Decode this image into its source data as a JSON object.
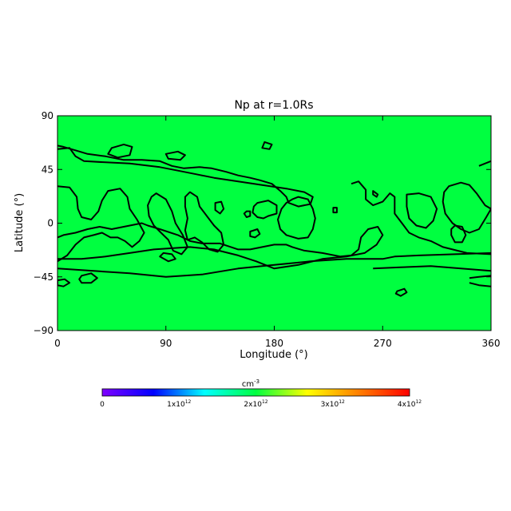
{
  "chart_data": {
    "type": "heatmap",
    "title": "Np at r=1.0Rs",
    "xlabel": "Longitude (°)",
    "ylabel": "Latitude (°)",
    "xlim": [
      0,
      360
    ],
    "ylim": [
      -90,
      90
    ],
    "x_ticks": [
      "0",
      "90",
      "180",
      "270",
      "360"
    ],
    "x_tick_values": [
      0,
      90,
      180,
      270,
      360
    ],
    "y_ticks": [
      "90",
      "45",
      "0",
      "−45",
      "−90"
    ],
    "y_tick_values": [
      90,
      45,
      0,
      -45,
      -90
    ],
    "field_color": "#00ff40",
    "contour_color": "#000000",
    "contours": [
      {
        "points": [
          [
            0,
            62
          ],
          [
            10,
            63
          ],
          [
            15,
            56
          ],
          [
            22,
            52
          ],
          [
            40,
            51
          ],
          [
            60,
            50
          ],
          [
            85,
            47
          ],
          [
            100,
            44
          ],
          [
            115,
            41
          ],
          [
            130,
            38
          ],
          [
            150,
            35
          ],
          [
            170,
            32
          ],
          [
            190,
            29
          ],
          [
            205,
            26
          ],
          [
            212,
            22
          ],
          [
            210,
            16
          ],
          [
            200,
            14
          ],
          [
            192,
            17
          ],
          [
            190,
            22
          ],
          [
            185,
            27
          ],
          [
            178,
            33
          ],
          [
            168,
            36
          ],
          [
            160,
            38
          ],
          [
            150,
            40
          ],
          [
            140,
            43
          ],
          [
            128,
            46
          ],
          [
            118,
            47
          ],
          [
            105,
            46
          ],
          [
            95,
            48
          ],
          [
            85,
            52
          ],
          [
            70,
            53
          ],
          [
            55,
            53
          ],
          [
            40,
            56
          ],
          [
            25,
            58
          ],
          [
            15,
            61
          ],
          [
            5,
            64
          ],
          [
            0,
            65
          ]
        ],
        "closed": false
      },
      {
        "points": [
          [
            0,
            31
          ],
          [
            10,
            30
          ],
          [
            16,
            22
          ],
          [
            17,
            12
          ],
          [
            20,
            5
          ],
          [
            28,
            3
          ],
          [
            34,
            10
          ],
          [
            37,
            19
          ],
          [
            42,
            27
          ],
          [
            52,
            29
          ],
          [
            58,
            22
          ],
          [
            60,
            12
          ],
          [
            66,
            3
          ],
          [
            72,
            -8
          ],
          [
            68,
            -15
          ],
          [
            62,
            -20
          ],
          [
            56,
            -15
          ],
          [
            50,
            -12
          ],
          [
            44,
            -12
          ],
          [
            37,
            -8
          ],
          [
            30,
            -10
          ],
          [
            22,
            -12
          ],
          [
            15,
            -18
          ],
          [
            8,
            -27
          ],
          [
            0,
            -32
          ]
        ],
        "closed": false
      },
      {
        "points": [
          [
            82,
            25
          ],
          [
            90,
            20
          ],
          [
            95,
            10
          ],
          [
            98,
            0
          ],
          [
            104,
            -10
          ],
          [
            108,
            -20
          ],
          [
            103,
            -26
          ],
          [
            96,
            -23
          ],
          [
            92,
            -14
          ],
          [
            86,
            -8
          ],
          [
            80,
            -2
          ],
          [
            76,
            6
          ],
          [
            75,
            15
          ],
          [
            78,
            22
          ]
        ],
        "closed": true
      },
      {
        "points": [
          [
            110,
            26
          ],
          [
            116,
            22
          ],
          [
            118,
            14
          ],
          [
            124,
            6
          ],
          [
            130,
            -2
          ],
          [
            136,
            -8
          ],
          [
            138,
            -18
          ],
          [
            133,
            -24
          ],
          [
            126,
            -22
          ],
          [
            120,
            -16
          ],
          [
            114,
            -12
          ],
          [
            108,
            -14
          ],
          [
            106,
            -6
          ],
          [
            108,
            4
          ],
          [
            106,
            14
          ],
          [
            106,
            22
          ]
        ],
        "closed": true
      },
      {
        "points": [
          [
            131,
            17
          ],
          [
            136,
            18
          ],
          [
            138,
            12
          ],
          [
            135,
            8
          ],
          [
            131,
            11
          ]
        ],
        "closed": true
      },
      {
        "points": [
          [
            157,
            10
          ],
          [
            160,
            10
          ],
          [
            160,
            6
          ],
          [
            157,
            5
          ],
          [
            155,
            8
          ]
        ],
        "closed": true
      },
      {
        "points": [
          [
            166,
            17
          ],
          [
            175,
            19
          ],
          [
            182,
            15
          ],
          [
            182,
            8
          ],
          [
            175,
            6
          ],
          [
            171,
            4
          ],
          [
            166,
            5
          ],
          [
            162,
            9
          ],
          [
            163,
            14
          ]
        ],
        "closed": true
      },
      {
        "points": [
          [
            195,
            20
          ],
          [
            200,
            22
          ],
          [
            208,
            20
          ],
          [
            212,
            12
          ],
          [
            214,
            4
          ],
          [
            212,
            -5
          ],
          [
            208,
            -12
          ],
          [
            200,
            -13
          ],
          [
            190,
            -10
          ],
          [
            185,
            -5
          ],
          [
            183,
            3
          ],
          [
            186,
            12
          ],
          [
            190,
            17
          ]
        ],
        "closed": true
      },
      {
        "points": [
          [
            0,
            -30
          ],
          [
            20,
            -30
          ],
          [
            40,
            -28
          ],
          [
            60,
            -25
          ],
          [
            80,
            -22
          ],
          [
            110,
            -20
          ],
          [
            130,
            -22
          ],
          [
            150,
            -27
          ],
          [
            165,
            -32
          ],
          [
            180,
            -38
          ],
          [
            200,
            -35
          ],
          [
            220,
            -30
          ],
          [
            240,
            -28
          ],
          [
            255,
            -25
          ],
          [
            265,
            -18
          ],
          [
            270,
            -10
          ],
          [
            266,
            -3
          ],
          [
            258,
            -5
          ],
          [
            252,
            -12
          ],
          [
            250,
            -22
          ],
          [
            244,
            -27
          ],
          [
            235,
            -28
          ],
          [
            220,
            -25
          ],
          [
            205,
            -23
          ],
          [
            195,
            -20
          ],
          [
            190,
            -18
          ],
          [
            180,
            -18
          ],
          [
            170,
            -20
          ],
          [
            160,
            -22
          ],
          [
            150,
            -22
          ],
          [
            135,
            -17
          ],
          [
            120,
            -17
          ],
          [
            110,
            -15
          ],
          [
            100,
            -10
          ],
          [
            85,
            -5
          ],
          [
            75,
            -2
          ],
          [
            70,
            0
          ],
          [
            60,
            -2
          ],
          [
            45,
            -5
          ],
          [
            35,
            -3
          ],
          [
            25,
            -5
          ],
          [
            15,
            -8
          ],
          [
            5,
            -10
          ],
          [
            0,
            -12
          ]
        ],
        "closed": false
      },
      {
        "points": [
          [
            160,
            -7
          ],
          [
            166,
            -5
          ],
          [
            168,
            -9
          ],
          [
            164,
            -12
          ],
          [
            160,
            -11
          ]
        ],
        "closed": true
      },
      {
        "points": [
          [
            229,
            13
          ],
          [
            232,
            13
          ],
          [
            232,
            9
          ],
          [
            229,
            9
          ]
        ],
        "closed": true
      },
      {
        "points": [
          [
            244,
            33
          ],
          [
            250,
            35
          ],
          [
            256,
            28
          ],
          [
            256,
            20
          ],
          [
            262,
            15
          ],
          [
            270,
            18
          ],
          [
            276,
            25
          ],
          [
            280,
            22
          ],
          [
            280,
            8
          ],
          [
            286,
            0
          ],
          [
            292,
            -8
          ],
          [
            300,
            -12
          ],
          [
            310,
            -15
          ],
          [
            320,
            -20
          ],
          [
            340,
            -25
          ],
          [
            360,
            -26
          ]
        ],
        "closed": false
      },
      {
        "points": [
          [
            262,
            27
          ],
          [
            266,
            24
          ],
          [
            265,
            22
          ],
          [
            262,
            24
          ]
        ],
        "closed": true
      },
      {
        "points": [
          [
            290,
            24
          ],
          [
            300,
            25
          ],
          [
            310,
            22
          ],
          [
            315,
            12
          ],
          [
            312,
            2
          ],
          [
            306,
            -4
          ],
          [
            298,
            -2
          ],
          [
            292,
            4
          ],
          [
            290,
            14
          ]
        ],
        "closed": true
      },
      {
        "points": [
          [
            325,
            31
          ],
          [
            335,
            34
          ],
          [
            342,
            32
          ],
          [
            348,
            25
          ],
          [
            355,
            15
          ],
          [
            360,
            12
          ],
          [
            356,
            5
          ],
          [
            350,
            -5
          ],
          [
            342,
            -8
          ],
          [
            335,
            -5
          ],
          [
            328,
            0
          ],
          [
            322,
            8
          ],
          [
            320,
            18
          ],
          [
            321,
            26
          ]
        ],
        "closed": true
      },
      {
        "points": [
          [
            330,
            -2
          ],
          [
            336,
            -3
          ],
          [
            339,
            -10
          ],
          [
            336,
            -16
          ],
          [
            330,
            -16
          ],
          [
            327,
            -10
          ],
          [
            327,
            -5
          ]
        ],
        "closed": true
      },
      {
        "points": [
          [
            350,
            48
          ],
          [
            360,
            52
          ]
        ],
        "closed": false
      },
      {
        "points": [
          [
            45,
            63
          ],
          [
            55,
            66
          ],
          [
            62,
            64
          ],
          [
            60,
            57
          ],
          [
            50,
            55
          ],
          [
            42,
            58
          ]
        ],
        "closed": true
      },
      {
        "points": [
          [
            90,
            58
          ],
          [
            100,
            60
          ],
          [
            106,
            57
          ],
          [
            102,
            53
          ],
          [
            92,
            54
          ]
        ],
        "closed": true
      },
      {
        "points": [
          [
            85,
            -28
          ],
          [
            92,
            -32
          ],
          [
            98,
            -30
          ],
          [
            95,
            -26
          ],
          [
            88,
            -25
          ]
        ],
        "closed": true
      },
      {
        "points": [
          [
            20,
            -44
          ],
          [
            28,
            -42
          ],
          [
            33,
            -46
          ],
          [
            28,
            -50
          ],
          [
            20,
            -50
          ],
          [
            18,
            -47
          ]
        ],
        "closed": true
      },
      {
        "points": [
          [
            0,
            -48
          ],
          [
            6,
            -47
          ],
          [
            10,
            -50
          ],
          [
            5,
            -53
          ],
          [
            0,
            -52
          ]
        ],
        "closed": true
      },
      {
        "points": [
          [
            0,
            -38
          ],
          [
            30,
            -40
          ],
          [
            60,
            -42
          ],
          [
            90,
            -45
          ],
          [
            120,
            -43
          ],
          [
            150,
            -38
          ],
          [
            180,
            -35
          ],
          [
            210,
            -32
          ],
          [
            240,
            -30
          ],
          [
            270,
            -30
          ],
          [
            280,
            -28
          ],
          [
            300,
            -27
          ],
          [
            330,
            -26
          ],
          [
            360,
            -25
          ]
        ],
        "closed": false
      },
      {
        "points": [
          [
            262,
            -38
          ],
          [
            285,
            -37
          ],
          [
            310,
            -36
          ],
          [
            335,
            -38
          ],
          [
            360,
            -40
          ]
        ],
        "closed": false
      },
      {
        "points": [
          [
            282,
            -57
          ],
          [
            288,
            -55
          ],
          [
            290,
            -58
          ],
          [
            285,
            -61
          ],
          [
            281,
            -59
          ]
        ],
        "closed": true
      },
      {
        "points": [
          [
            172,
            68
          ],
          [
            178,
            66
          ],
          [
            176,
            62
          ],
          [
            170,
            63
          ]
        ],
        "closed": true
      },
      {
        "points": [
          [
            342,
            -46
          ],
          [
            350,
            -45
          ],
          [
            360,
            -44
          ]
        ],
        "closed": false
      },
      {
        "points": [
          [
            342,
            -50
          ],
          [
            350,
            -52
          ],
          [
            360,
            -53
          ]
        ],
        "closed": false
      }
    ]
  },
  "colorbar": {
    "unit_base": "cm",
    "unit_exp": "-3",
    "colors": [
      "#7f00ff",
      "#0000ff",
      "#00ffff",
      "#00ff40",
      "#ffff00",
      "#ff8000",
      "#ff0000"
    ],
    "range": [
      0,
      4000000000000
    ],
    "ticks": [
      {
        "value": 0,
        "base": "0",
        "exp": ""
      },
      {
        "value": 1000000000000,
        "base": "1x10",
        "exp": "12"
      },
      {
        "value": 2000000000000,
        "base": "2x10",
        "exp": "12"
      },
      {
        "value": 3000000000000,
        "base": "3x10",
        "exp": "12"
      },
      {
        "value": 4000000000000,
        "base": "4x10",
        "exp": "12"
      }
    ]
  }
}
